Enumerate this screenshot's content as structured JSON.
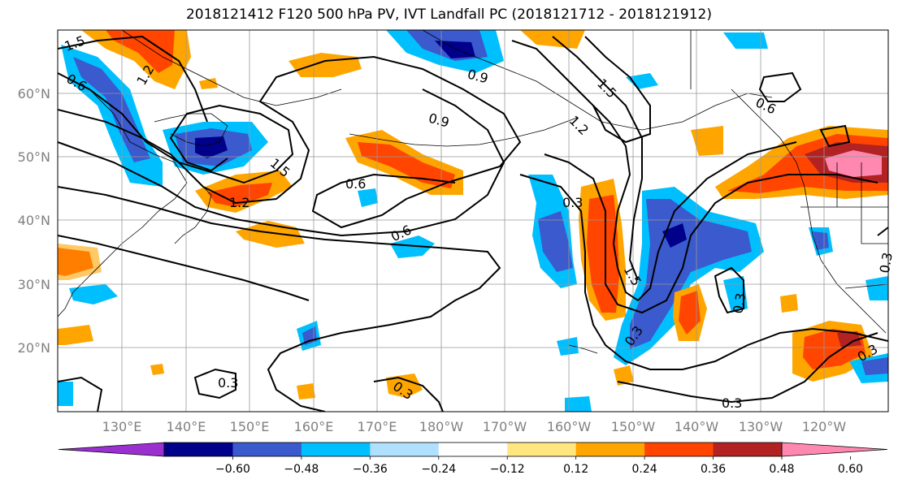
{
  "title": "2018121412 F120 500 hPa PV, IVT Landfall PC (2018121712 - 2018121912)",
  "lat_labels": [
    "60°N",
    "50°N",
    "40°N",
    "30°N",
    "20°N"
  ],
  "lon_labels": [
    "130°E",
    "140°E",
    "150°E",
    "160°E",
    "170°E",
    "180°W",
    "170°W",
    "160°W",
    "150°W",
    "140°W",
    "130°W",
    "120°W"
  ],
  "colorbar": {
    "colors": [
      "#9b30d0",
      "#00008b",
      "#3a5acd",
      "#00bfff",
      "#b0e0ff",
      "#ffffff",
      "#ffe680",
      "#ffa500",
      "#ff4500",
      "#b22222",
      "#ff88b0"
    ],
    "tick_labels": [
      "−0.60",
      "−0.48",
      "−0.36",
      "−0.24",
      "−0.12",
      "0.12",
      "0.24",
      "0.36",
      "0.48",
      "0.60"
    ]
  },
  "contour_labels": [
    "1.5",
    "1.2",
    "0.6",
    "1.5",
    "1.2",
    "0.9",
    "0.9",
    "0.6",
    "0.6",
    "1.5",
    "1.2",
    "0.6",
    "0.3",
    "1.5",
    "0.3",
    "0.3",
    "0.3",
    "0.3",
    "0.3",
    "0.3",
    "0.3"
  ]
}
